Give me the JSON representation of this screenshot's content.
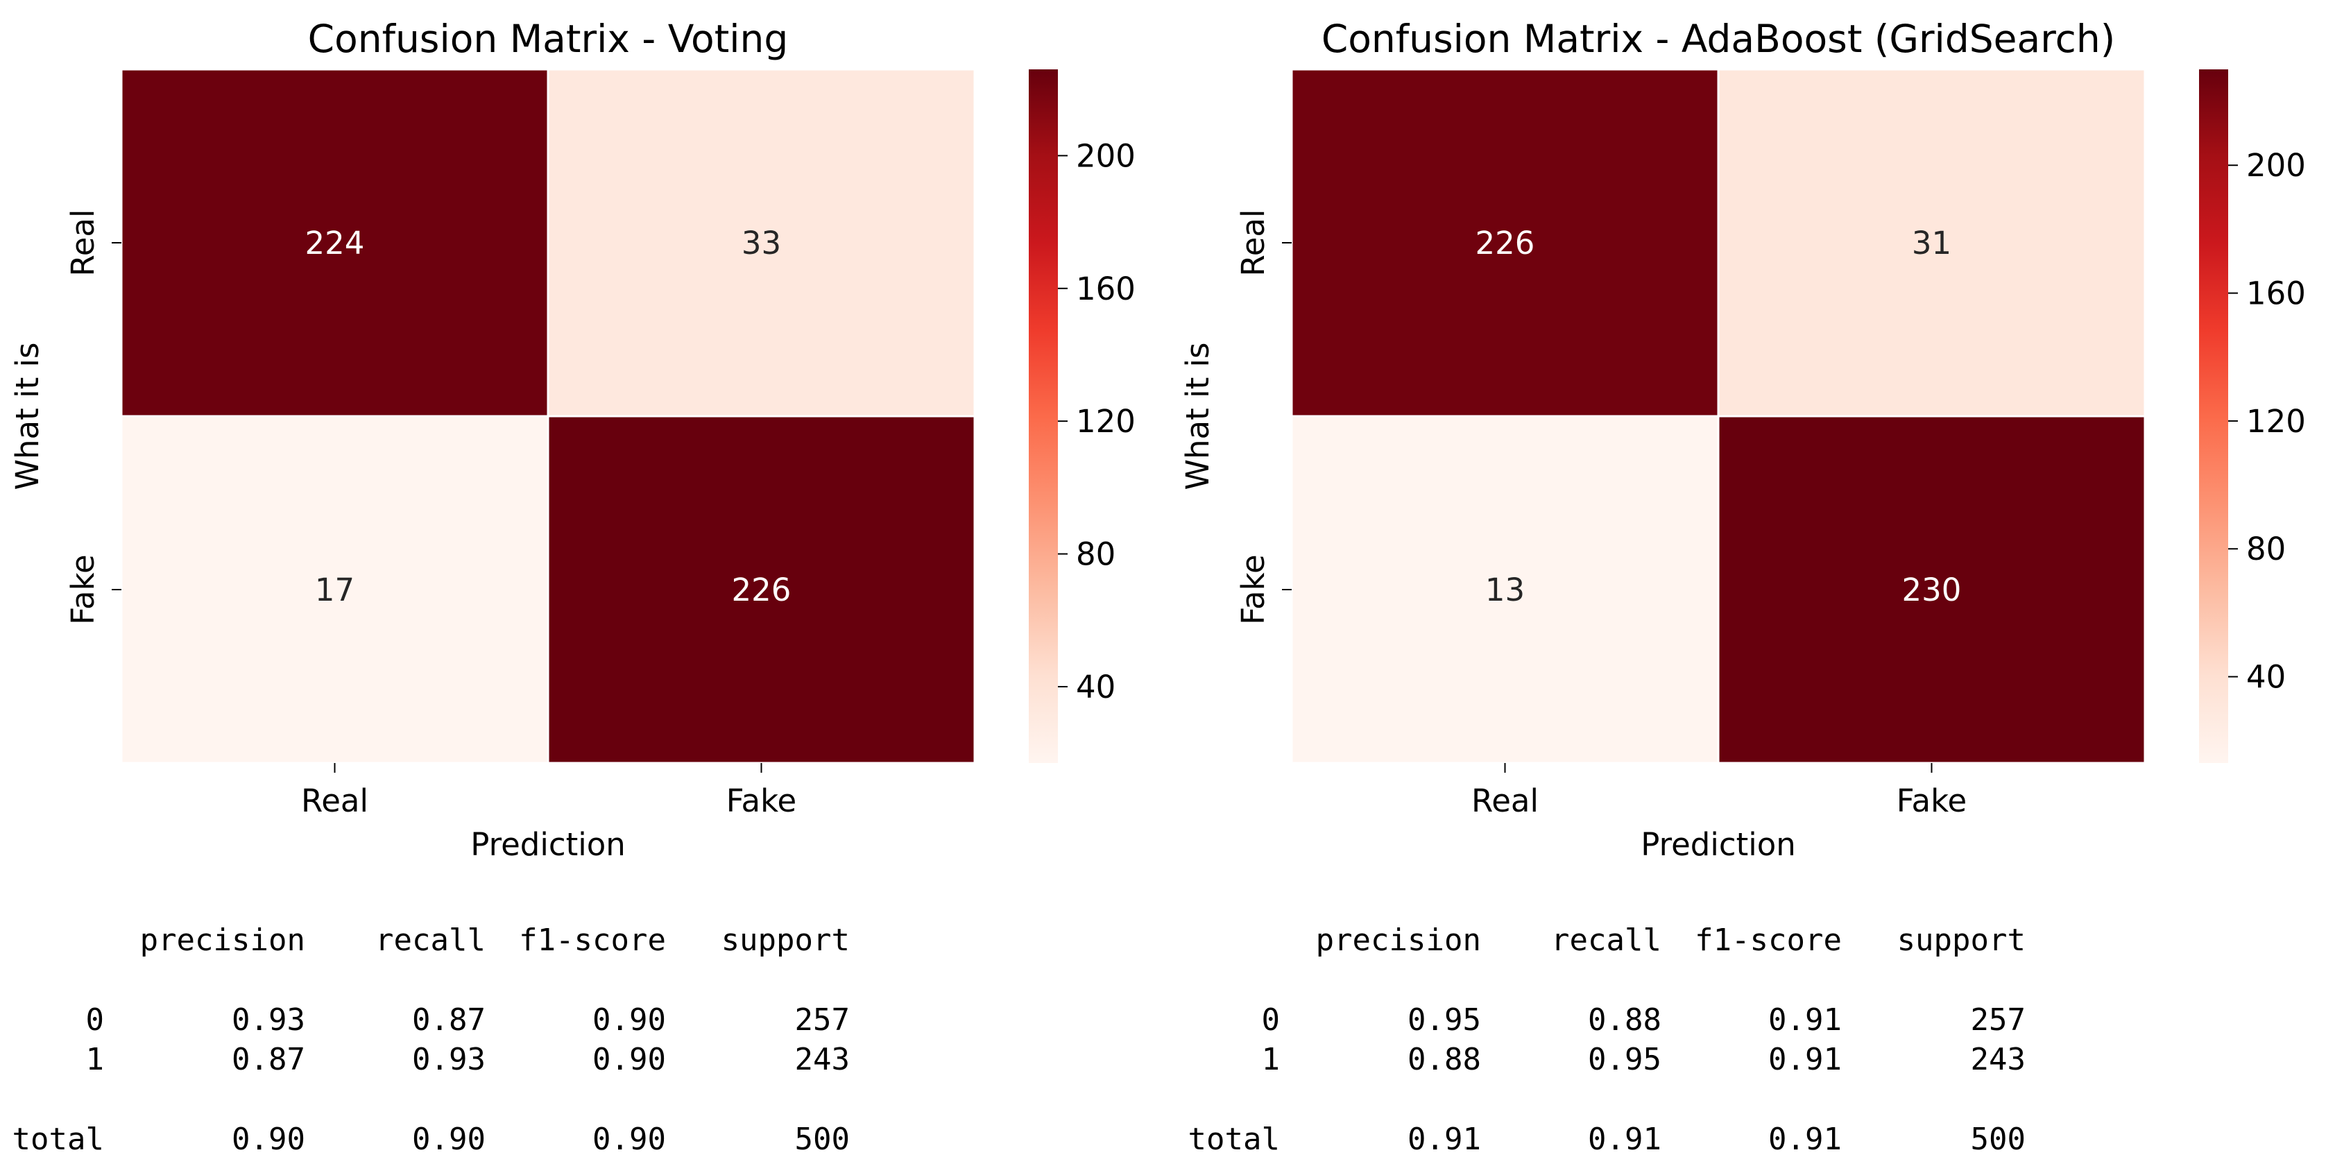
{
  "chart_data": [
    {
      "type": "heatmap",
      "title": "Confusion Matrix - Voting",
      "xlabel": "Prediction",
      "ylabel": "What it is",
      "x_categories": [
        "Real",
        "Fake"
      ],
      "y_categories": [
        "Real",
        "Fake"
      ],
      "values": [
        [
          224,
          33
        ],
        [
          17,
          226
        ]
      ],
      "colormap": "Reds",
      "colorbar": {
        "range": [
          17,
          226
        ],
        "ticks": [
          40,
          80,
          120,
          160,
          200
        ]
      }
    },
    {
      "type": "heatmap",
      "title": "Confusion Matrix - AdaBoost (GridSearch)",
      "xlabel": "Prediction",
      "ylabel": "What it is",
      "x_categories": [
        "Real",
        "Fake"
      ],
      "y_categories": [
        "Real",
        "Fake"
      ],
      "values": [
        [
          226,
          31
        ],
        [
          13,
          230
        ]
      ],
      "colormap": "Reds",
      "colorbar": {
        "range": [
          13,
          230
        ],
        "ticks": [
          40,
          80,
          120,
          160,
          200
        ]
      }
    }
  ],
  "reports": [
    {
      "headers": [
        "precision",
        "recall",
        "f1-score",
        "support"
      ],
      "rows": [
        {
          "label": "0",
          "values": [
            "0.93",
            "0.87",
            "0.90",
            "257"
          ]
        },
        {
          "label": "1",
          "values": [
            "0.87",
            "0.93",
            "0.90",
            "243"
          ]
        },
        {
          "label": "total",
          "values": [
            "0.90",
            "0.90",
            "0.90",
            "500"
          ]
        }
      ]
    },
    {
      "headers": [
        "precision",
        "recall",
        "f1-score",
        "support"
      ],
      "rows": [
        {
          "label": "0",
          "values": [
            "0.95",
            "0.88",
            "0.91",
            "257"
          ]
        },
        {
          "label": "1",
          "values": [
            "0.88",
            "0.95",
            "0.91",
            "243"
          ]
        },
        {
          "label": "total",
          "values": [
            "0.91",
            "0.91",
            "0.91",
            "500"
          ]
        }
      ]
    }
  ],
  "colors": {
    "low": "#fff5f0",
    "high": "#67000d",
    "text_dark": "#262626",
    "text_light": "#ffffff"
  }
}
